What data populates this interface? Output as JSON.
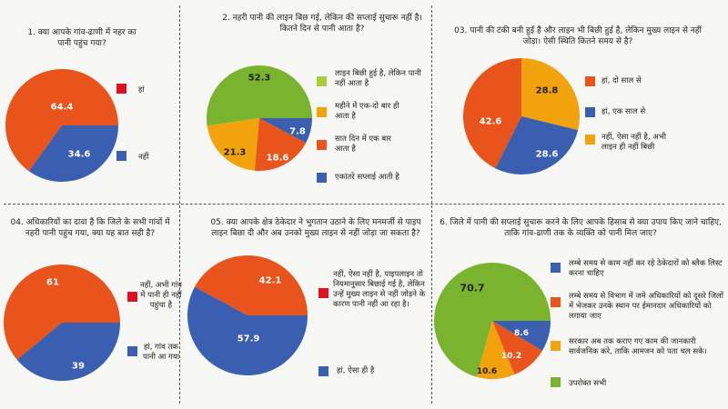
{
  "colors": {
    "orange": "#e8541c",
    "blue": "#3a5fb0",
    "red": "#e01020",
    "green": "#7ab32e",
    "amber": "#f2a20c",
    "lime": "#a8cf3a"
  },
  "chart_data": [
    {
      "type": "pie",
      "title": "1. क्या आपके गांव-ढाणी में नहर का पानी पहुंच गया?",
      "slices": [
        {
          "label": "हां",
          "value": null,
          "color": "#e01020"
        },
        {
          "label": "नहीं",
          "value": 34.6,
          "color": "#3a5fb0"
        },
        {
          "label": "",
          "value": 64.4,
          "color": "#e8541c"
        }
      ],
      "data_labels": [
        "64.4",
        "34.6"
      ]
    },
    {
      "type": "pie",
      "title": "2. नहरी पानी की लाइन बिछ गई, लेकिन की सप्लाई सुचारू नहीं है। कितने दिन से पानी आता है?",
      "slices": [
        {
          "label": "लाइन बिछी हुई है, लेकिन पानी नहीं आता है",
          "value": 52.3,
          "color": "#7ab32e"
        },
        {
          "label": "महीने में एक-दो बार ही आता है",
          "value": 21.3,
          "color": "#f2a20c"
        },
        {
          "label": "सात दिन में एक बार आता है",
          "value": 18.6,
          "color": "#e8541c"
        },
        {
          "label": "एकांतरे सप्लाई आती है",
          "value": 7.8,
          "color": "#3a5fb0"
        }
      ]
    },
    {
      "type": "pie",
      "title": "03. पानी की टंकी बनी हुई है और लाइन भी बिछी हुई है, लेकिन मुख्य लाइन से नहीं जोड़ा। ऐसी स्थिति कितने समय से है?",
      "slices": [
        {
          "label": "हां, दो साल से",
          "value": 42.6,
          "color": "#e8541c"
        },
        {
          "label": "हां, एक साल से",
          "value": 28.6,
          "color": "#3a5fb0"
        },
        {
          "label": "नहीं, ऐसा नहीं है, अभी लाइन ही नहीं बिछी",
          "value": 28.8,
          "color": "#f2a20c"
        }
      ]
    },
    {
      "type": "pie",
      "title": "04. अधिकारियों का दावा है कि जिले के सभी गांवों में नहरी पानी पहुंच गया, क्या यह बात सही है?",
      "slices": [
        {
          "label": "नहीं, अभी गांव में पानी ही नहीं पहुंचा है",
          "value": null,
          "color": "#e01020"
        },
        {
          "label": "हां, गांव तक पानी आ गया",
          "value": 39,
          "color": "#3a5fb0"
        },
        {
          "label": "",
          "value": 61,
          "color": "#e8541c"
        }
      ],
      "data_labels": [
        "61",
        "39"
      ]
    },
    {
      "type": "pie",
      "title": "05. क्या आपके क्षेत्र ठेकेदार ने भुगतान उठाने के लिए मनमर्जी से पाइप लाइन बिछा दी और अब उनको मुख्य लाइन से नहीं जोड़ा जा सकता है?",
      "slices": [
        {
          "label": "नहीं, ऐसा नहीं है, पाइपलाइन तो नियमानुसार बिछाई गई है, लेकिन उन्हें मुख्य लाइन से नहीं जोड़ने के कारण पानी नहीं आ रहा है।",
          "value": 42.1,
          "color": "#e01020"
        },
        {
          "label": "हां, ऐसा ही है",
          "value": 57.9,
          "color": "#3a5fb0"
        }
      ]
    },
    {
      "type": "pie",
      "title": "6. जिले में पानी की सप्लाई सुचारू करने के लिए आपके हिसाब से क्या उपाय किए जाने चाहिए, ताकि गांव-ढाणी तक के व्यक्ति को पानी मिल जाए?",
      "slices": [
        {
          "label": "लम्बे समय से काम नहीं कर रहे ठेकेदारों को ब्लैक लिस्ट करना चाहिए",
          "value": 8.6,
          "color": "#3a5fb0"
        },
        {
          "label": "लम्बे समय से विभाग में जमे अधिकारियों को दूसरे जिलों में भेजकर उनके स्थान पर ईमानदार अधिकारियों को लगाया जाए",
          "value": 10.2,
          "color": "#e8541c"
        },
        {
          "label": "सरकार अब तक कराए गए काम की जानकारी सार्वजनिक करे, ताकि आमजन को पता चल सके।",
          "value": 10.6,
          "color": "#f2a20c"
        },
        {
          "label": "उपरोक्त सभी",
          "value": 70.7,
          "color": "#7ab32e"
        }
      ]
    }
  ]
}
